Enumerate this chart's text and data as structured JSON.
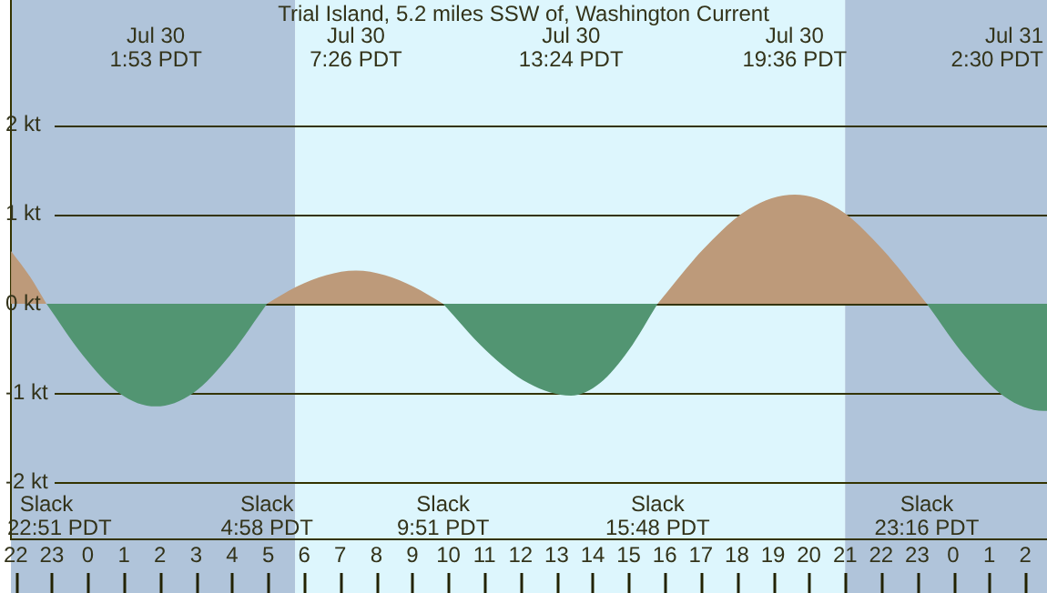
{
  "chart_data": {
    "type": "area",
    "title": "Trial Island, 5.2 miles SSW of, Washington Current",
    "series": [
      {
        "color": "#bd9a7a",
        "x": [
          "--07-29T21:52",
          "--07-29T22:24",
          "--07-29T22:51"
        ],
        "values": [
          0.59,
          0.3,
          0
        ]
      },
      {
        "color": "#529572",
        "x": [
          "--07-29T22:51",
          "--07-29T23:52",
          "--07-30T00:52",
          "--07-30T01:53",
          "--07-30T02:55",
          "--07-30T03:56",
          "--07-30T04:58"
        ],
        "values": [
          0,
          -0.58,
          -1.0,
          -1.15,
          -1.0,
          -0.58,
          0
        ]
      },
      {
        "color": "#bd9a7a",
        "x": [
          "--07-30T04:58",
          "--07-30T05:47",
          "--07-30T06:37",
          "--07-30T07:26",
          "--07-30T08:14",
          "--07-30T09:02",
          "--07-30T09:51"
        ],
        "values": [
          0,
          0.19,
          0.32,
          0.37,
          0.32,
          0.19,
          0
        ]
      },
      {
        "color": "#529572",
        "x": [
          "--07-30T09:51",
          "--07-30T11:02",
          "--07-30T12:13",
          "--07-30T13:24",
          "--07-30T14:12",
          "--07-30T15:00",
          "--07-30T15:48"
        ],
        "values": [
          0,
          -0.52,
          -0.89,
          -1.03,
          -0.89,
          -0.52,
          0
        ]
      },
      {
        "color": "#bd9a7a",
        "x": [
          "--07-30T15:48",
          "--07-30T17:04",
          "--07-30T18:20",
          "--07-30T19:36",
          "--07-30T20:49",
          "--07-30T22:02",
          "--07-30T23:16"
        ],
        "values": [
          0,
          0.61,
          1.06,
          1.22,
          1.06,
          0.61,
          0
        ]
      },
      {
        "color": "#529572",
        "x": [
          "--07-30T23:16",
          "--07-31T00:21",
          "--07-31T01:25",
          "--07-31T02:30",
          "--07-31T02:36"
        ],
        "values": [
          0,
          -0.6,
          -1.04,
          -1.2,
          -1.2
        ]
      }
    ],
    "xlim": [
      "--07-29T21:52",
      "--07-31T02:36"
    ],
    "xticks": [
      {
        "value": "--07-29T22:00",
        "label": "22"
      },
      {
        "value": "--07-29T23:00",
        "label": "23"
      },
      {
        "value": "--07-30T00:00",
        "label": "0"
      },
      {
        "value": "--07-30T01:00",
        "label": "1"
      },
      {
        "value": "--07-30T02:00",
        "label": "2"
      },
      {
        "value": "--07-30T03:00",
        "label": "3"
      },
      {
        "value": "--07-30T04:00",
        "label": "4"
      },
      {
        "value": "--07-30T05:00",
        "label": "5"
      },
      {
        "value": "--07-30T06:00",
        "label": "6"
      },
      {
        "value": "--07-30T07:00",
        "label": "7"
      },
      {
        "value": "--07-30T08:00",
        "label": "8"
      },
      {
        "value": "--07-30T09:00",
        "label": "9"
      },
      {
        "value": "--07-30T10:00",
        "label": "10"
      },
      {
        "value": "--07-30T11:00",
        "label": "11"
      },
      {
        "value": "--07-30T12:00",
        "label": "12"
      },
      {
        "value": "--07-30T13:00",
        "label": "13"
      },
      {
        "value": "--07-30T14:00",
        "label": "14"
      },
      {
        "value": "--07-30T15:00",
        "label": "15"
      },
      {
        "value": "--07-30T16:00",
        "label": "16"
      },
      {
        "value": "--07-30T17:00",
        "label": "17"
      },
      {
        "value": "--07-30T18:00",
        "label": "18"
      },
      {
        "value": "--07-30T19:00",
        "label": "19"
      },
      {
        "value": "--07-30T20:00",
        "label": "20"
      },
      {
        "value": "--07-30T21:00",
        "label": "21"
      },
      {
        "value": "--07-30T22:00",
        "label": "22"
      },
      {
        "value": "--07-30T23:00",
        "label": "23"
      },
      {
        "value": "--07-31T00:00",
        "label": "0"
      },
      {
        "value": "--07-31T01:00",
        "label": "1"
      },
      {
        "value": "--07-31T02:00",
        "label": "2"
      }
    ],
    "ylim": [
      -2.64,
      3.4
    ],
    "yticks": [
      {
        "value": -2,
        "label": "-2 kt"
      },
      {
        "value": -1,
        "label": "-1 kt"
      },
      {
        "value": 0,
        "label": "0 kt"
      },
      {
        "value": 1,
        "label": "1 kt"
      },
      {
        "value": 2,
        "label": "2 kt"
      }
    ],
    "grid": "y",
    "bands": [
      {
        "axis": "x",
        "from": "--07-29T21:52",
        "to": "--07-30T05:45",
        "color": "#b0c4da"
      },
      {
        "axis": "x",
        "from": "--07-30T05:45",
        "to": "--07-30T21:00",
        "color": "#ddf6fd"
      },
      {
        "axis": "x",
        "from": "--07-30T21:00",
        "to": "--07-31T02:36",
        "color": "#b0c4da"
      }
    ],
    "annotations": [
      "Jul 30\n1:53 PDT",
      "Jul 30\n7:26 PDT",
      "Jul 30\n13:24 PDT",
      "Jul 30\n19:36 PDT",
      "Jul 31\n2:30 PDT",
      "Slack\n22:51 PDT",
      "Slack\n4:58 PDT",
      "Slack\n9:51 PDT",
      "Slack\n15:48 PDT",
      "Slack\n23:16 PDT"
    ]
  }
}
